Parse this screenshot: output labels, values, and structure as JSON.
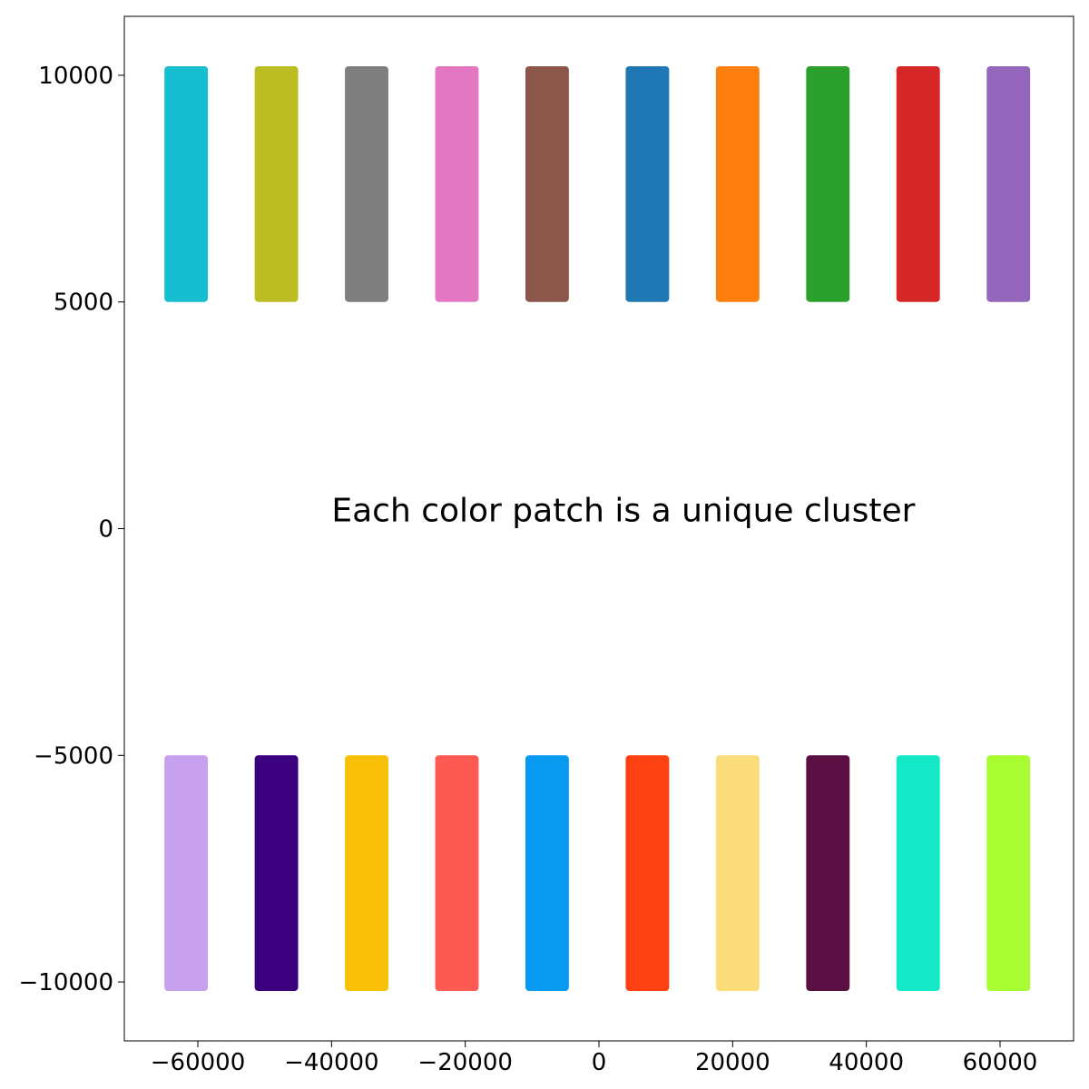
{
  "chart_data": {
    "type": "scatter",
    "title": "",
    "xlabel": "",
    "ylabel": "",
    "xlim": [
      -71000,
      71000
    ],
    "ylim": [
      -11300,
      11300
    ],
    "grid": false,
    "legend": "none",
    "xticks": [
      -60000,
      -40000,
      -20000,
      0,
      20000,
      40000,
      60000
    ],
    "yticks": [
      -10000,
      -5000,
      0,
      5000,
      10000
    ],
    "xtick_labels": [
      "−60000",
      "−40000",
      "−20000",
      "0",
      "20000",
      "40000",
      "60000"
    ],
    "ytick_labels": [
      "−10000",
      "−5000",
      "0",
      "5000",
      "10000"
    ],
    "annotation": {
      "text": "Each color patch is a unique cluster",
      "x": -40000,
      "y": 200
    },
    "clusters": [
      {
        "x_range": [
          -65000,
          -58500
        ],
        "y_range": [
          5000,
          10200
        ],
        "color": "#17becf"
      },
      {
        "x_range": [
          -51500,
          -45000
        ],
        "y_range": [
          5000,
          10200
        ],
        "color": "#bcbd22"
      },
      {
        "x_range": [
          -38000,
          -31500
        ],
        "y_range": [
          5000,
          10200
        ],
        "color": "#7f7f7f"
      },
      {
        "x_range": [
          -24500,
          -18000
        ],
        "y_range": [
          5000,
          10200
        ],
        "color": "#e377c2"
      },
      {
        "x_range": [
          -11000,
          -4500
        ],
        "y_range": [
          5000,
          10200
        ],
        "color": "#8c564b"
      },
      {
        "x_range": [
          4000,
          10500
        ],
        "y_range": [
          5000,
          10200
        ],
        "color": "#1f77b4"
      },
      {
        "x_range": [
          17500,
          24000
        ],
        "y_range": [
          5000,
          10200
        ],
        "color": "#ff7f0e"
      },
      {
        "x_range": [
          31000,
          37500
        ],
        "y_range": [
          5000,
          10200
        ],
        "color": "#2ca02c"
      },
      {
        "x_range": [
          44500,
          51000
        ],
        "y_range": [
          5000,
          10200
        ],
        "color": "#d62728"
      },
      {
        "x_range": [
          58000,
          64500
        ],
        "y_range": [
          5000,
          10200
        ],
        "color": "#9467bd"
      },
      {
        "x_range": [
          -65000,
          -58500
        ],
        "y_range": [
          -10200,
          -5000
        ],
        "color": "#c7a0ee"
      },
      {
        "x_range": [
          -51500,
          -45000
        ],
        "y_range": [
          -10200,
          -5000
        ],
        "color": "#3b007e"
      },
      {
        "x_range": [
          -38000,
          -31500
        ],
        "y_range": [
          -10200,
          -5000
        ],
        "color": "#f8c107"
      },
      {
        "x_range": [
          -24500,
          -18000
        ],
        "y_range": [
          -10200,
          -5000
        ],
        "color": "#fe5a54"
      },
      {
        "x_range": [
          -11000,
          -4500
        ],
        "y_range": [
          -10200,
          -5000
        ],
        "color": "#089af1"
      },
      {
        "x_range": [
          4000,
          10500
        ],
        "y_range": [
          -10200,
          -5000
        ],
        "color": "#fe4111"
      },
      {
        "x_range": [
          17500,
          24000
        ],
        "y_range": [
          -10200,
          -5000
        ],
        "color": "#fadc7b"
      },
      {
        "x_range": [
          31000,
          37500
        ],
        "y_range": [
          -10200,
          -5000
        ],
        "color": "#5a1042"
      },
      {
        "x_range": [
          44500,
          51000
        ],
        "y_range": [
          -10200,
          -5000
        ],
        "color": "#13e8c7"
      },
      {
        "x_range": [
          58000,
          64500
        ],
        "y_range": [
          -10200,
          -5000
        ],
        "color": "#a7fc32"
      }
    ]
  }
}
